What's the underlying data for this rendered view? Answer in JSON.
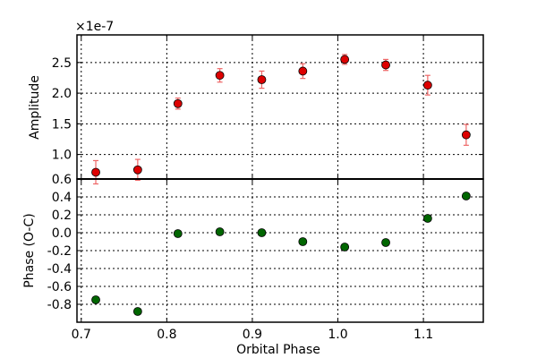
{
  "chart_data": [
    {
      "type": "scatter",
      "panel": "top",
      "ylabel": "Amplitude",
      "offset_label": "×1e-7",
      "xlim": [
        0.695,
        1.17
      ],
      "ylim": [
        0.6,
        2.95
      ],
      "yticks": [
        "0.6",
        "1.0",
        "1.5",
        "2.0",
        "2.5"
      ],
      "ytick_values": [
        0.6,
        1.0,
        1.5,
        2.0,
        2.5
      ],
      "grid": true,
      "marker_color": "#dd0000",
      "errorbar_color": "#ee6666",
      "points": [
        {
          "x": 0.717,
          "y": 0.71,
          "err": 0.19
        },
        {
          "x": 0.766,
          "y": 0.75,
          "err": 0.17
        },
        {
          "x": 0.813,
          "y": 1.83,
          "err": 0.09
        },
        {
          "x": 0.862,
          "y": 2.29,
          "err": 0.11
        },
        {
          "x": 0.911,
          "y": 2.22,
          "err": 0.14
        },
        {
          "x": 0.959,
          "y": 2.36,
          "err": 0.12
        },
        {
          "x": 1.008,
          "y": 2.55,
          "err": 0.08
        },
        {
          "x": 1.056,
          "y": 2.46,
          "err": 0.09
        },
        {
          "x": 1.105,
          "y": 2.13,
          "err": 0.16
        },
        {
          "x": 1.15,
          "y": 1.32,
          "err": 0.17
        }
      ]
    },
    {
      "type": "scatter",
      "panel": "bottom",
      "xlabel": "Orbital Phase",
      "ylabel": "Phase (O-C)",
      "xlim": [
        0.695,
        1.17
      ],
      "ylim": [
        -1.0,
        0.6
      ],
      "xticks": [
        "0.7",
        "0.8",
        "0.9",
        "1.0",
        "1.1"
      ],
      "xtick_values": [
        0.7,
        0.8,
        0.9,
        1.0,
        1.1
      ],
      "yticks": [
        "-0.8",
        "-0.6",
        "-0.4",
        "-0.2",
        "0.0",
        "0.2",
        "0.4"
      ],
      "ytick_values": [
        -0.8,
        -0.6,
        -0.4,
        -0.2,
        0.0,
        0.2,
        0.4
      ],
      "grid": true,
      "marker_color": "#006600",
      "points": [
        {
          "x": 0.717,
          "y": -0.75
        },
        {
          "x": 0.766,
          "y": -0.88
        },
        {
          "x": 0.813,
          "y": -0.01
        },
        {
          "x": 0.862,
          "y": 0.01
        },
        {
          "x": 0.911,
          "y": 0.0
        },
        {
          "x": 0.959,
          "y": -0.1
        },
        {
          "x": 1.008,
          "y": -0.16
        },
        {
          "x": 1.056,
          "y": -0.11
        },
        {
          "x": 1.105,
          "y": 0.16
        },
        {
          "x": 1.15,
          "y": 0.41
        }
      ]
    }
  ]
}
